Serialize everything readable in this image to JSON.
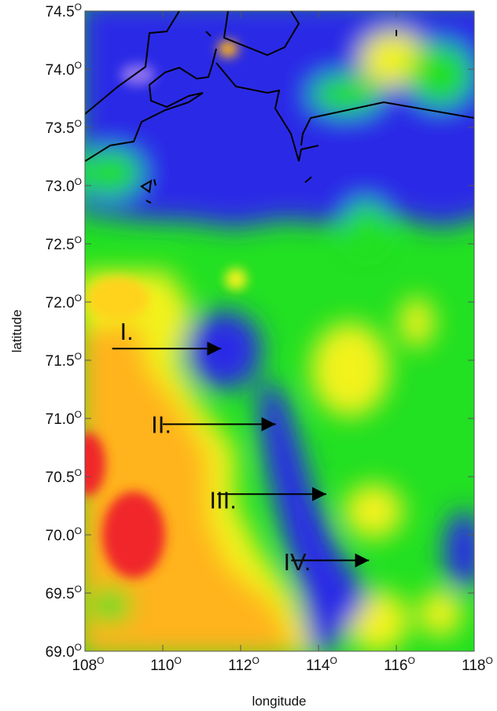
{
  "chart_data": {
    "type": "heatmap",
    "xlabel": "longitude",
    "ylabel": "latitude",
    "xlim": [
      108,
      118
    ],
    "ylim": [
      69.0,
      74.5
    ],
    "x_ticks": [
      {
        "value": 108,
        "label": "108",
        "sup": "O"
      },
      {
        "value": 110,
        "label": "110",
        "sup": "O"
      },
      {
        "value": 112,
        "label": "112",
        "sup": "O"
      },
      {
        "value": 114,
        "label": "114",
        "sup": "O"
      },
      {
        "value": 116,
        "label": "116",
        "sup": "O"
      },
      {
        "value": 118,
        "label": "118",
        "sup": "O"
      }
    ],
    "y_ticks": [
      {
        "value": 74.5,
        "label": "74.5",
        "sup": "O"
      },
      {
        "value": 74.0,
        "label": "74.0",
        "sup": "O"
      },
      {
        "value": 73.5,
        "label": "73.5",
        "sup": "O"
      },
      {
        "value": 73.0,
        "label": "73.0",
        "sup": "O"
      },
      {
        "value": 72.5,
        "label": "72.5",
        "sup": "O"
      },
      {
        "value": 72.0,
        "label": "72.0",
        "sup": "O"
      },
      {
        "value": 71.5,
        "label": "71.5",
        "sup": "O"
      },
      {
        "value": 71.0,
        "label": "71.0",
        "sup": "O"
      },
      {
        "value": 70.5,
        "label": "70.5",
        "sup": "O"
      },
      {
        "value": 70.0,
        "label": "70.0",
        "sup": "O"
      },
      {
        "value": 69.5,
        "label": "69.5",
        "sup": "O"
      },
      {
        "value": 69.0,
        "label": "69.0",
        "sup": "O"
      }
    ],
    "colors": {
      "blue": "#2a2ae6",
      "green": "#22e022",
      "yellow": "#f2f21e",
      "orange": "#ffb31a",
      "red": "#f0282a"
    },
    "annotations": [
      {
        "label": "I.",
        "text_lon": 108.9,
        "text_lat": 71.75,
        "arrow_from": [
          108.7,
          71.6
        ],
        "arrow_to": [
          111.5,
          71.6
        ]
      },
      {
        "label": "II.",
        "text_lon": 109.7,
        "text_lat": 70.95,
        "arrow_from": [
          110.0,
          70.95
        ],
        "arrow_to": [
          112.9,
          70.95
        ]
      },
      {
        "label": "III.",
        "text_lon": 111.2,
        "text_lat": 70.3,
        "arrow_from": [
          111.4,
          70.35
        ],
        "arrow_to": [
          114.2,
          70.35
        ]
      },
      {
        "label": "IV.",
        "text_lon": 113.1,
        "text_lat": 69.77,
        "arrow_from": [
          113.3,
          69.78
        ],
        "arrow_to": [
          115.3,
          69.78
        ]
      }
    ]
  }
}
